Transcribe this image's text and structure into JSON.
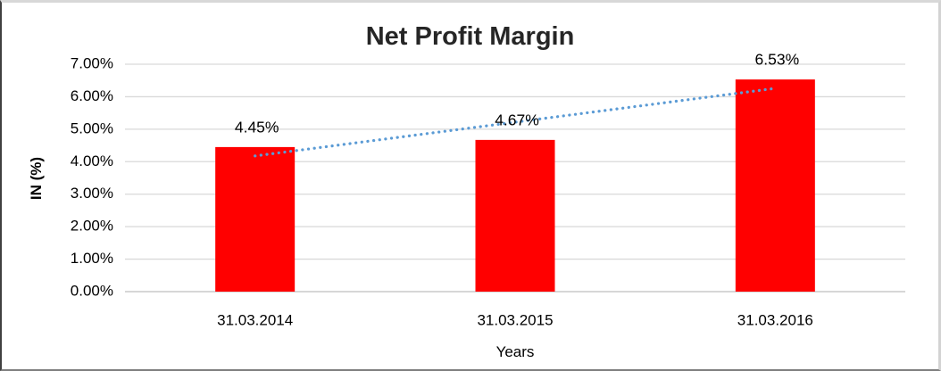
{
  "chart_data": {
    "type": "bar",
    "title": "Net Profit Margin",
    "categories": [
      "31.03.2014",
      "31.03.2015",
      "31.03.2016"
    ],
    "values": [
      4.45,
      4.67,
      6.53
    ],
    "data_labels": [
      "4.45%",
      "4.67%",
      "6.53%"
    ],
    "xlabel": "Years",
    "ylabel": "IN (%)",
    "ylim": [
      0,
      7
    ],
    "ytick_step": 1,
    "ytick_labels": [
      "0.00%",
      "1.00%",
      "2.00%",
      "3.00%",
      "4.00%",
      "5.00%",
      "6.00%",
      "7.00%"
    ],
    "grid": true,
    "legend": "none",
    "bar_color": "#FF0000",
    "gridline_color": "#D9D9D9",
    "axis_line_color": "#BFBFBF",
    "text_color": "#000000",
    "title_color": "#262626",
    "trendline": {
      "type": "linear",
      "style": "dotted",
      "color": "#5B9BD5"
    }
  }
}
